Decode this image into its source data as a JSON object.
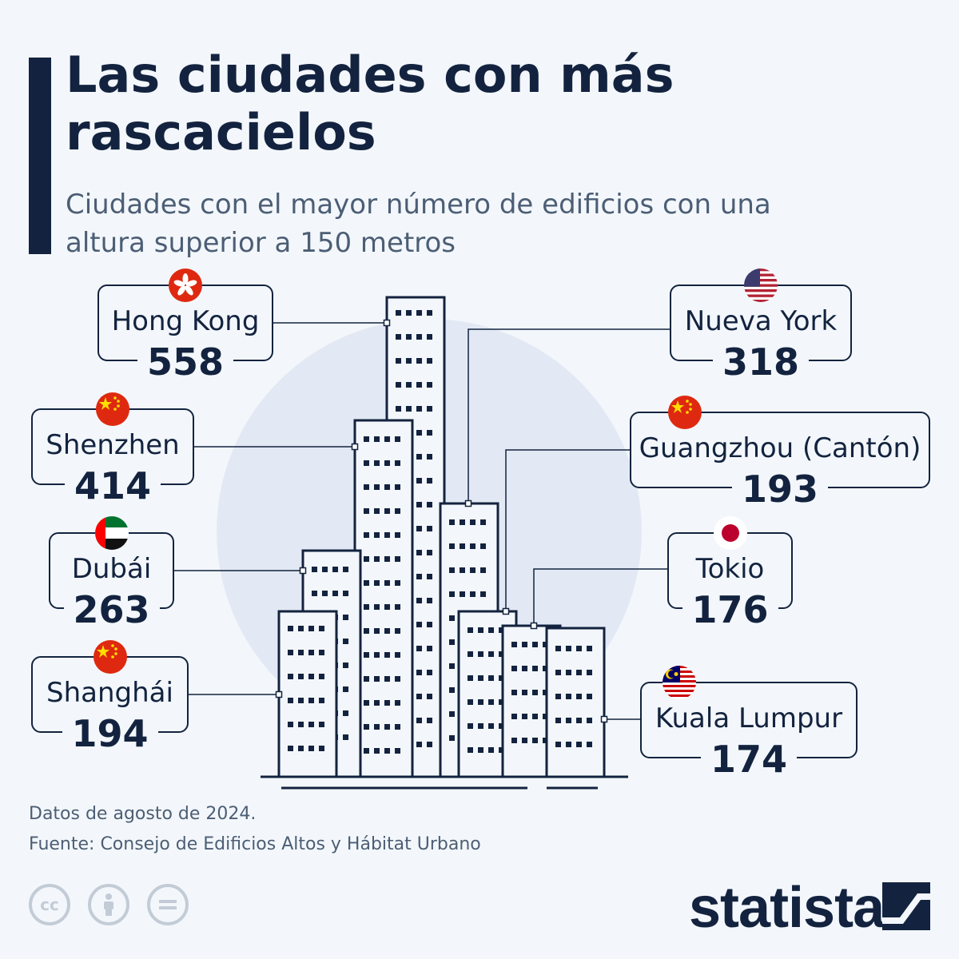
{
  "header": {
    "title": "Las ciudades con más rascacielos",
    "subtitle": "Ciudades con el mayor número de edificios con una altura superior a 150 metros"
  },
  "chart_data": {
    "type": "bar",
    "title": "Las ciudades con más rascacielos",
    "subtitle": "Ciudades con el mayor número de edificios con una altura superior a 150 metros",
    "unit": "edificios > 150 m",
    "categories": [
      "Hong Kong",
      "Shenzhen",
      "Dubái",
      "Shanghái",
      "Nueva York",
      "Guangzhou (Cantón)",
      "Tokio",
      "Kuala Lumpur"
    ],
    "values": [
      558,
      414,
      263,
      194,
      318,
      193,
      176,
      174
    ],
    "cities": [
      {
        "name": "Hong Kong",
        "value": 558,
        "flag": "hong-kong-flag-icon"
      },
      {
        "name": "Shenzhen",
        "value": 414,
        "flag": "china-flag-icon"
      },
      {
        "name": "Dubái",
        "value": 263,
        "flag": "uae-flag-icon"
      },
      {
        "name": "Shanghái",
        "value": 194,
        "flag": "china-flag-icon"
      },
      {
        "name": "Nueva York",
        "value": 318,
        "flag": "usa-flag-icon"
      },
      {
        "name": "Guangzhou (Cantón)",
        "value": 193,
        "flag": "china-flag-icon"
      },
      {
        "name": "Tokio",
        "value": 176,
        "flag": "japan-flag-icon"
      },
      {
        "name": "Kuala Lumpur",
        "value": 174,
        "flag": "malaysia-flag-icon"
      }
    ]
  },
  "footer": {
    "note": "Datos de agosto de 2024.",
    "source": "Fuente: Consejo de Edificios Altos y Hábitat Urbano",
    "license_icons": [
      "cc-icon",
      "attribution-icon",
      "no-derivatives-icon"
    ],
    "brand": "statista"
  },
  "colors": {
    "background": "#f3f7fb",
    "navy": "#13233f",
    "muted_text": "#4c5e75",
    "circle": "#e3e9f4",
    "icon_grey": "#c3ccd6"
  }
}
